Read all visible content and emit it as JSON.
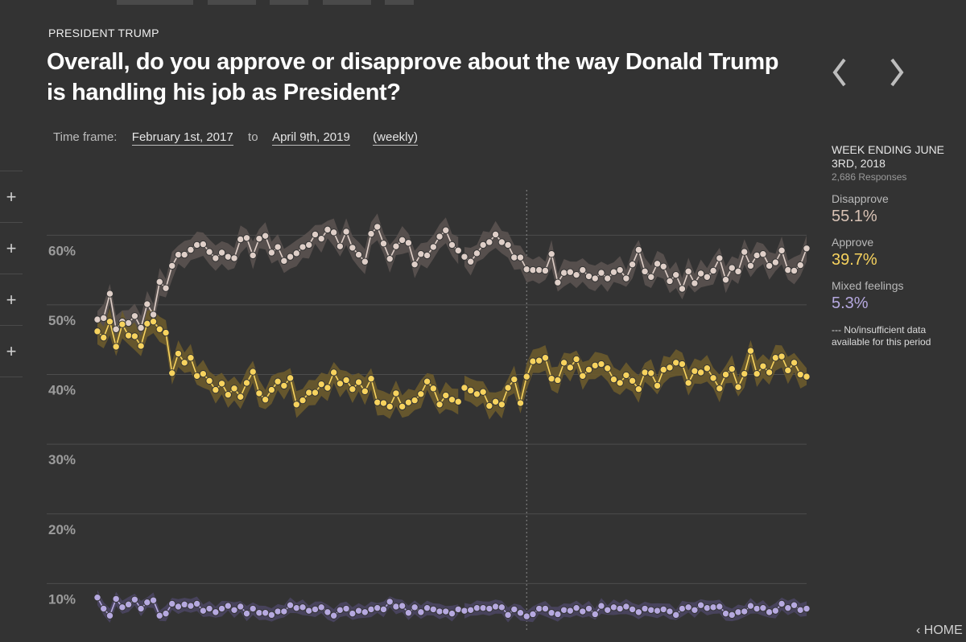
{
  "header": {
    "topic": "PRESIDENT TRUMP",
    "question": "Overall, do you approve or disapprove about the way Donald Trump is handling his job as President?"
  },
  "timeframe": {
    "label": "Time frame:",
    "start": "February 1st, 2017",
    "to": "to",
    "end": "April 9th, 2019",
    "interval": "(weekly)"
  },
  "nav": {
    "prev_icon": "chevron-left-icon",
    "next_icon": "chevron-right-icon"
  },
  "rail": {
    "buttons": [
      "+",
      "+",
      "+",
      "+"
    ]
  },
  "sidebar": {
    "week_title": "WEEK ENDING JUNE 3RD, 2018",
    "responses": "2,686 Responses",
    "disapprove_label": "Disapprove",
    "disapprove_value": "55.1%",
    "approve_label": "Approve",
    "approve_value": "39.7%",
    "mixed_label": "Mixed feelings",
    "mixed_value": "5.3%",
    "no_data_note": "--- No/insufficient data available for this period"
  },
  "footer": {
    "home": "HOME"
  },
  "colors": {
    "background": "#333333",
    "disapprove": "#dfcfc8",
    "approve": "#f7d35e",
    "mixed": "#b6a9e0"
  },
  "chart_data": {
    "type": "line",
    "y_ticks": [
      "60%",
      "50%",
      "40%",
      "30%",
      "20%",
      "10%"
    ],
    "y_tick_values": [
      60,
      50,
      40,
      30,
      20,
      10
    ],
    "ylim": [
      3,
      63.5
    ],
    "x_count": 115,
    "gap_after_index": 58,
    "highlight_index": 69,
    "grid": true,
    "legend": "right",
    "series": [
      {
        "name": "Disapprove",
        "color": "#dfcfc8",
        "values": [
          47.9,
          48.1,
          51.6,
          46.5,
          47.6,
          47.4,
          48.4,
          46.7,
          50.1,
          48.6,
          53.3,
          52.4,
          55.6,
          57.2,
          57.2,
          57.9,
          58.6,
          58.7,
          57.6,
          56.7,
          57.5,
          56.9,
          56.7,
          59.4,
          59.6,
          57.1,
          59.5,
          59.9,
          57.5,
          58.3,
          56.3,
          56.9,
          57.4,
          58.3,
          58.6,
          60.1,
          59.5,
          60.8,
          60.4,
          58.4,
          60.5,
          58.2,
          57.2,
          56.2,
          60.2,
          61.2,
          58.8,
          56.6,
          58.4,
          59.3,
          58.9,
          55.8,
          57.3,
          57.1,
          58.3,
          59.8,
          60.7,
          58.6,
          57.8,
          56.9,
          56.2,
          57.4,
          58.6,
          59.0,
          60.1,
          59.0,
          58.6,
          56.8,
          56.8,
          55.1,
          55.0,
          55.0,
          54.9,
          57.3,
          53.2,
          54.6,
          54.7,
          54.3,
          55.0,
          54.1,
          53.8,
          54.6,
          53.8,
          54.7,
          55.0,
          53.8,
          55.8,
          57.9,
          54.8,
          54.0,
          55.9,
          55.5,
          53.4,
          54.3,
          52.3,
          54.8,
          53.1,
          54.5,
          54.0,
          54.9,
          56.7,
          53.6,
          55.3,
          54.8,
          57.6,
          55.6,
          57.1,
          57.3,
          55.6,
          56.1,
          57.8,
          55.0,
          54.9,
          55.7,
          58.1
        ]
      },
      {
        "name": "Approve",
        "color": "#f7d35e",
        "values": [
          46.2,
          45.3,
          47.6,
          44.0,
          47.2,
          45.6,
          45.5,
          44.1,
          47.3,
          47.6,
          46.5,
          46.0,
          40.2,
          43.0,
          41.7,
          42.4,
          39.8,
          40.1,
          39.1,
          37.8,
          38.7,
          37.1,
          38.0,
          36.8,
          38.8,
          40.4,
          37.3,
          36.4,
          37.8,
          39.0,
          38.4,
          39.5,
          35.7,
          36.3,
          37.4,
          37.4,
          38.6,
          38.1,
          40.3,
          38.7,
          39.2,
          37.9,
          38.9,
          37.6,
          39.4,
          36.0,
          35.9,
          35.4,
          37.3,
          35.4,
          36.0,
          36.3,
          37.2,
          39.0,
          38.0,
          35.7,
          37.0,
          36.4,
          36.1,
          38.1,
          37.7,
          37.2,
          37.5,
          35.5,
          36.1,
          35.7,
          38.1,
          39.3,
          35.9,
          39.7,
          41.9,
          42.0,
          42.4,
          39.4,
          39.2,
          41.7,
          41.0,
          42.2,
          39.8,
          40.7,
          41.3,
          41.5,
          40.9,
          39.3,
          38.8,
          39.9,
          39.1,
          37.9,
          40.3,
          40.2,
          38.4,
          40.7,
          41.0,
          41.7,
          41.5,
          38.8,
          40.5,
          40.3,
          40.9,
          39.5,
          38.0,
          40.0,
          40.8,
          38.2,
          40.1,
          43.4,
          40.1,
          41.2,
          40.3,
          42.4,
          42.6,
          40.6,
          41.7,
          40.0,
          39.7
        ]
      },
      {
        "name": "Mixed feelings",
        "color": "#b6a9e0",
        "values": [
          8.0,
          6.4,
          5.4,
          7.8,
          6.6,
          7.0,
          7.7,
          6.4,
          7.3,
          7.6,
          5.4,
          5.7,
          7.1,
          6.7,
          7.0,
          6.8,
          7.1,
          6.1,
          6.4,
          5.9,
          6.4,
          6.8,
          6.2,
          6.7,
          5.7,
          6.4,
          5.8,
          5.8,
          5.5,
          6.0,
          6.0,
          6.9,
          6.5,
          6.6,
          6.1,
          6.3,
          6.6,
          5.9,
          5.4,
          6.2,
          6.4,
          5.7,
          6.1,
          5.9,
          6.3,
          6.5,
          6.3,
          7.4,
          6.7,
          6.8,
          5.8,
          6.6,
          5.9,
          6.5,
          6.3,
          6.0,
          6.0,
          5.7,
          6.3,
          6.1,
          6.2,
          6.5,
          6.5,
          6.4,
          6.7,
          6.6,
          5.5,
          6.3,
          5.8,
          5.3,
          5.6,
          6.4,
          6.4,
          5.8,
          5.6,
          6.2,
          6.1,
          6.5,
          6.0,
          6.4,
          5.6,
          6.8,
          6.2,
          6.6,
          6.4,
          6.7,
          6.3,
          5.9,
          6.4,
          6.2,
          6.1,
          6.3,
          6.0,
          5.5,
          6.4,
          6.6,
          6.2,
          6.9,
          6.5,
          6.6,
          6.7,
          5.7,
          5.5,
          5.9,
          6.0,
          6.8,
          6.4,
          6.5,
          5.9,
          6.1,
          7.1,
          6.5,
          6.9,
          6.2,
          6.4
        ]
      }
    ]
  }
}
